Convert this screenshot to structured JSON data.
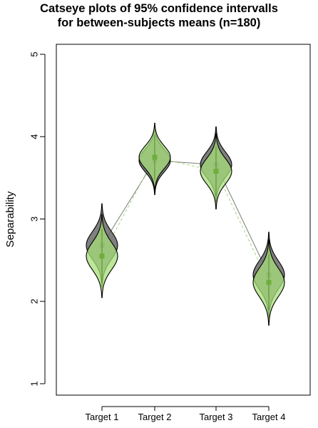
{
  "chart_data": {
    "type": "catseye",
    "title": [
      "Catseye plots of 95% confidence intervalls",
      "for between-subjects means (n=180)"
    ],
    "xlabel": "",
    "ylabel": "Separability",
    "categories": [
      "Target 1",
      "Target 2",
      "Target 3",
      "Target 4"
    ],
    "ylim": [
      0.9,
      5.3
    ],
    "yticks": [
      1,
      2,
      3,
      4,
      5
    ],
    "grid": false,
    "legend": "none",
    "series": [
      {
        "color": "#555555",
        "fill": "#6a6a6a",
        "means": [
          2.68,
          3.71,
          3.66,
          2.32
        ],
        "ci_low": [
          2.35,
          3.45,
          3.35,
          1.98
        ],
        "ci_high": [
          3.01,
          3.98,
          3.96,
          2.66
        ],
        "line": "solid"
      },
      {
        "color": "#7ab648",
        "fill": "#a6dd78",
        "means": [
          2.55,
          3.75,
          3.58,
          2.23
        ],
        "ci_low": [
          2.22,
          3.48,
          3.28,
          1.89
        ],
        "ci_high": [
          2.88,
          4.02,
          3.88,
          2.57
        ],
        "line": "dashed"
      }
    ]
  }
}
